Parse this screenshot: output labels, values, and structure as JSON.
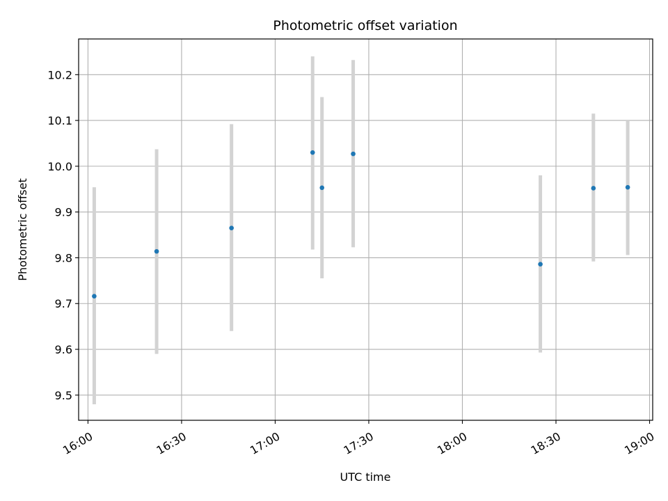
{
  "chart_data": {
    "type": "scatter",
    "title": "Photometric offset variation",
    "xlabel": "UTC time",
    "ylabel": "Photometric offset",
    "x_ticks": [
      "16:00",
      "16:30",
      "17:00",
      "17:30",
      "18:00",
      "18:30",
      "19:00"
    ],
    "y_ticks": [
      "9.5",
      "9.6",
      "9.7",
      "9.8",
      "9.9",
      "10.0",
      "10.1",
      "10.2"
    ],
    "xlim": [
      "15:57",
      "19:01"
    ],
    "ylim": [
      9.445,
      10.278
    ],
    "grid": true,
    "series": [
      {
        "marker_color": "#1f77b4",
        "errorbar_color": "#d3d3d3",
        "points": [
          {
            "x": "16:02",
            "y": 9.716,
            "y_low": 9.48,
            "y_high": 9.954
          },
          {
            "x": "16:22",
            "y": 9.814,
            "y_low": 9.59,
            "y_high": 10.037
          },
          {
            "x": "16:46",
            "y": 9.865,
            "y_low": 9.64,
            "y_high": 10.092
          },
          {
            "x": "17:12",
            "y": 10.03,
            "y_low": 9.818,
            "y_high": 10.24
          },
          {
            "x": "17:15",
            "y": 9.953,
            "y_low": 9.755,
            "y_high": 10.151
          },
          {
            "x": "17:25",
            "y": 10.027,
            "y_low": 9.823,
            "y_high": 10.232
          },
          {
            "x": "18:25",
            "y": 9.786,
            "y_low": 9.593,
            "y_high": 9.98
          },
          {
            "x": "18:42",
            "y": 9.952,
            "y_low": 9.792,
            "y_high": 10.115
          },
          {
            "x": "18:53",
            "y": 9.954,
            "y_low": 9.806,
            "y_high": 10.1
          }
        ]
      }
    ]
  }
}
